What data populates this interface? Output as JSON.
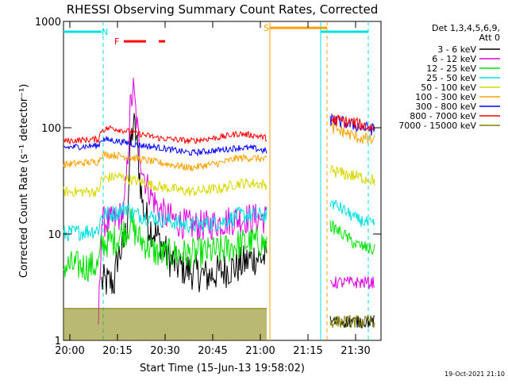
{
  "chart_data": {
    "type": "line",
    "title": "RHESSI Observing Summary Count Rates, Corrected",
    "xlabel": "Start Time (15-Jun-13 19:58:02)",
    "ylabel": "Corrected Count Rate (s⁻¹ detector⁻¹)",
    "x_unit": "minutes after 19:58:02",
    "xlim": [
      0,
      100
    ],
    "ylim": [
      1,
      1000
    ],
    "y_scale": "log",
    "x_ticks": [
      {
        "label": "20:00",
        "value": 2
      },
      {
        "label": "20:15",
        "value": 17
      },
      {
        "label": "20:30",
        "value": 32
      },
      {
        "label": "20:45",
        "value": 47
      },
      {
        "label": "21:00",
        "value": 62
      },
      {
        "label": "21:15",
        "value": 77
      },
      {
        "label": "21:30",
        "value": 92
      }
    ],
    "y_ticks": [
      {
        "label": "1",
        "value": 1
      },
      {
        "label": "10",
        "value": 10
      },
      {
        "label": "100",
        "value": 100
      },
      {
        "label": "1000",
        "value": 1000
      }
    ],
    "legend_header": [
      "Det 1,3,4,5,6,9,",
      "Att 0"
    ],
    "legend_position": "right",
    "series": [
      {
        "name": "3 - 6 keV",
        "color": "#000000",
        "noise": 0.35,
        "points": [
          [
            12,
            3.5
          ],
          [
            16,
            3.5
          ],
          [
            17,
            6
          ],
          [
            19,
            8
          ],
          [
            20,
            12
          ],
          [
            21,
            60
          ],
          [
            22,
            110
          ],
          [
            23,
            80
          ],
          [
            24,
            35
          ],
          [
            25,
            18
          ],
          [
            27,
            12
          ],
          [
            29,
            10
          ],
          [
            31,
            8
          ],
          [
            33,
            6
          ],
          [
            36,
            5
          ],
          [
            40,
            4.5
          ],
          [
            45,
            4
          ],
          [
            50,
            4.5
          ],
          [
            55,
            5
          ],
          [
            60,
            6
          ],
          [
            64,
            6
          ]
        ]
      },
      {
        "name": "6 - 12 keV",
        "color": "#e000e0",
        "noise": 0.3,
        "points": [
          [
            11,
            1.5
          ],
          [
            12,
            13
          ],
          [
            15,
            13
          ],
          [
            17,
            14
          ],
          [
            19,
            16
          ],
          [
            20,
            40
          ],
          [
            21,
            150
          ],
          [
            22,
            230
          ],
          [
            23,
            120
          ],
          [
            24,
            60
          ],
          [
            25,
            40
          ],
          [
            26,
            30
          ],
          [
            28,
            22
          ],
          [
            30,
            17
          ],
          [
            32,
            15
          ],
          [
            36,
            13
          ],
          [
            40,
            12
          ],
          [
            45,
            12
          ],
          [
            50,
            13
          ],
          [
            55,
            14
          ],
          [
            60,
            14
          ],
          [
            64,
            14
          ]
        ]
      },
      {
        "name": "12 - 25 keV",
        "color": "#00e000",
        "noise": 0.3,
        "points": [
          [
            0,
            5
          ],
          [
            11,
            5
          ],
          [
            12,
            8
          ],
          [
            17,
            9
          ],
          [
            18,
            10
          ],
          [
            20,
            11
          ],
          [
            21,
            13
          ],
          [
            22,
            11
          ],
          [
            24,
            9
          ],
          [
            26,
            8
          ],
          [
            28,
            7
          ],
          [
            30,
            6.5
          ],
          [
            40,
            6.5
          ],
          [
            50,
            7
          ],
          [
            55,
            8
          ],
          [
            60,
            8.5
          ],
          [
            64,
            8
          ]
        ]
      },
      {
        "name": "25 - 50 keV",
        "color": "#00e0e0",
        "noise": 0.16,
        "points": [
          [
            0,
            10
          ],
          [
            11,
            11
          ],
          [
            12,
            15
          ],
          [
            17,
            16
          ],
          [
            20,
            18
          ],
          [
            21,
            16
          ],
          [
            24,
            15
          ],
          [
            30,
            14
          ],
          [
            40,
            12
          ],
          [
            50,
            13
          ],
          [
            55,
            15
          ],
          [
            60,
            15
          ],
          [
            64,
            15
          ]
        ]
      },
      {
        "name": "50 - 100 keV",
        "color": "#d8d800",
        "noise": 0.1,
        "points": [
          [
            0,
            25
          ],
          [
            11,
            25
          ],
          [
            12,
            33
          ],
          [
            17,
            35
          ],
          [
            22,
            32
          ],
          [
            30,
            28
          ],
          [
            40,
            25
          ],
          [
            50,
            27
          ],
          [
            55,
            30
          ],
          [
            60,
            30
          ],
          [
            64,
            29
          ]
        ]
      },
      {
        "name": "100 - 300 keV",
        "color": "#ffa000",
        "noise": 0.07,
        "points": [
          [
            0,
            45
          ],
          [
            11,
            48
          ],
          [
            12,
            56
          ],
          [
            17,
            55
          ],
          [
            22,
            52
          ],
          [
            30,
            47
          ],
          [
            40,
            42
          ],
          [
            50,
            47
          ],
          [
            55,
            52
          ],
          [
            60,
            52
          ],
          [
            64,
            50
          ]
        ]
      },
      {
        "name": "300 - 800 keV",
        "color": "#0000ff",
        "noise": 0.06,
        "points": [
          [
            0,
            65
          ],
          [
            11,
            68
          ],
          [
            12,
            78
          ],
          [
            17,
            75
          ],
          [
            22,
            70
          ],
          [
            30,
            65
          ],
          [
            40,
            58
          ],
          [
            50,
            62
          ],
          [
            55,
            65
          ],
          [
            60,
            64
          ],
          [
            64,
            60
          ]
        ]
      },
      {
        "name": "800 - 7000 keV",
        "color": "#ff0000",
        "noise": 0.06,
        "points": [
          [
            0,
            75
          ],
          [
            11,
            78
          ],
          [
            12,
            95
          ],
          [
            15,
            100
          ],
          [
            22,
            90
          ],
          [
            30,
            80
          ],
          [
            40,
            75
          ],
          [
            50,
            82
          ],
          [
            55,
            88
          ],
          [
            60,
            85
          ],
          [
            64,
            80
          ]
        ]
      },
      {
        "name": "7000 - 15000 keV",
        "color": "#808000",
        "noise": 0.0,
        "points": [
          [
            0,
            2
          ],
          [
            64,
            2
          ]
        ]
      }
    ],
    "series_after_gap": [
      {
        "name": "3 - 6 keV",
        "color": "#000000",
        "points": [
          [
            84,
            1.5
          ],
          [
            98,
            1.5
          ]
        ]
      },
      {
        "name": "6 - 12 keV",
        "color": "#e000e0",
        "points": [
          [
            84,
            3.5
          ],
          [
            88,
            3.5
          ],
          [
            92,
            3.5
          ],
          [
            98,
            3.5
          ]
        ]
      },
      {
        "name": "12 - 25 keV",
        "color": "#00e000",
        "points": [
          [
            84,
            12
          ],
          [
            88,
            10
          ],
          [
            92,
            8
          ],
          [
            98,
            7
          ]
        ]
      },
      {
        "name": "25 - 50 keV",
        "color": "#00e0e0",
        "points": [
          [
            84,
            20
          ],
          [
            88,
            17
          ],
          [
            92,
            14
          ],
          [
            98,
            12
          ]
        ]
      },
      {
        "name": "50 - 100 keV",
        "color": "#d8d800",
        "points": [
          [
            84,
            40
          ],
          [
            88,
            37
          ],
          [
            92,
            35
          ],
          [
            98,
            32
          ]
        ]
      },
      {
        "name": "100 - 300 keV",
        "color": "#ffa000",
        "points": [
          [
            84,
            100
          ],
          [
            88,
            92
          ],
          [
            92,
            82
          ],
          [
            98,
            75
          ]
        ]
      },
      {
        "name": "300 - 800 keV",
        "color": "#0000ff",
        "points": [
          [
            84,
            120
          ],
          [
            88,
            112
          ],
          [
            92,
            105
          ],
          [
            98,
            95
          ]
        ]
      },
      {
        "name": "800 - 7000 keV",
        "color": "#ff0000",
        "points": [
          [
            84,
            120
          ],
          [
            88,
            115
          ],
          [
            92,
            110
          ],
          [
            98,
            98
          ]
        ]
      },
      {
        "name": "7000 - 15000 keV",
        "color": "#808000",
        "points": [
          [
            84,
            1.5
          ],
          [
            98,
            1.5
          ]
        ]
      }
    ],
    "annotations": [
      {
        "label": "N",
        "color": "#00e0e0",
        "x": 12,
        "level": 800
      },
      {
        "label": "F",
        "color": "#ff0000",
        "x": 16,
        "level": 650
      },
      {
        "label": "S",
        "color": "#ffa000",
        "x": 63,
        "level": 870
      }
    ],
    "timeline_bars": [
      {
        "color": "#00e0e0",
        "x0": 0,
        "x1": 12,
        "level": 800
      },
      {
        "color": "#ff0000",
        "x0": 19,
        "x1": 26,
        "level": 650
      },
      {
        "color": "#ff0000",
        "x0": 30,
        "x1": 32,
        "level": 650
      },
      {
        "color": "#ffa000",
        "x0": 65,
        "x1": 83,
        "level": 870
      },
      {
        "color": "#00e0e0",
        "x0": 81,
        "x1": 96,
        "level": 800
      }
    ],
    "vertical_lines": [
      {
        "color": "#00e0e0",
        "x": 12.5,
        "dashed": true
      },
      {
        "color": "#ffa000",
        "x": 65,
        "dashed": false
      },
      {
        "color": "#00e0e0",
        "x": 81,
        "dashed": false
      },
      {
        "color": "#ffa000",
        "x": 83,
        "dashed": true
      },
      {
        "color": "#00e0e0",
        "x": 96,
        "dashed": true
      }
    ]
  },
  "footer_date": "19-Oct-2021 21:10"
}
